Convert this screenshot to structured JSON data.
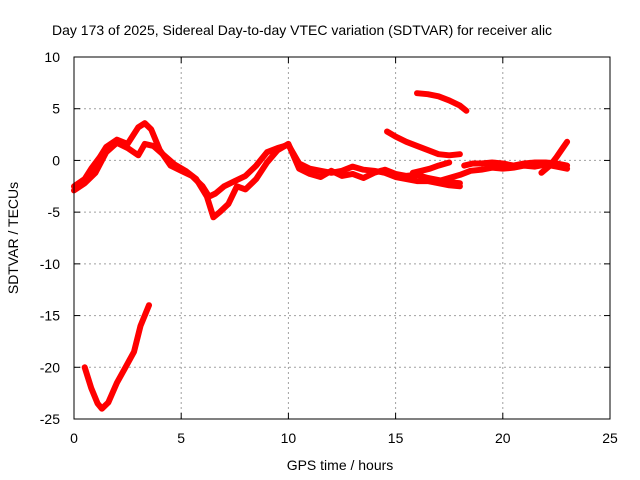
{
  "chart_data": {
    "type": "line",
    "title": "Day 173 of 2025, Sidereal Day-to-day VTEC variation (SDTVAR) for receiver alic",
    "xlabel": "GPS time / hours",
    "ylabel": "SDTVAR / TECUs",
    "xlim": [
      0,
      25
    ],
    "ylim": [
      -25,
      10
    ],
    "x_ticks": [
      0,
      5,
      10,
      15,
      20,
      25
    ],
    "y_ticks": [
      -25,
      -20,
      -15,
      -10,
      -5,
      0,
      5,
      10
    ],
    "grid": true,
    "series_color": "#ff0000",
    "series": [
      {
        "name": "s1",
        "x": [
          0.0,
          0.5,
          0.8,
          1.2,
          1.5,
          2.0,
          2.5,
          3.0,
          3.3,
          3.6,
          4.0,
          4.5,
          5.0,
          5.5,
          6.0,
          6.3,
          6.6,
          7.0,
          7.5,
          8.0,
          8.5,
          9.0,
          9.5,
          10.0,
          10.5,
          11.0,
          11.5,
          12.0,
          12.5,
          13.0,
          13.5,
          14.0,
          14.5,
          15.0,
          15.5,
          16.0,
          16.5,
          17.0,
          17.5,
          18.0
        ],
        "y": [
          -2.5,
          -1.8,
          -0.8,
          0.3,
          1.3,
          2.0,
          1.6,
          3.2,
          3.6,
          3.0,
          1.0,
          -0.5,
          -1.0,
          -1.5,
          -2.5,
          -3.5,
          -3.2,
          -2.5,
          -2.0,
          -1.5,
          -0.5,
          0.8,
          1.2,
          1.5,
          -0.3,
          -0.8,
          -1.0,
          -1.2,
          -1.0,
          -0.6,
          -0.9,
          -1.0,
          -1.2,
          -1.6,
          -1.8,
          -2.0,
          -2.0,
          -2.2,
          -2.4,
          -2.5
        ]
      },
      {
        "name": "s2",
        "x": [
          0.0,
          0.5,
          1.0,
          1.5,
          2.0,
          2.5,
          3.0,
          3.3,
          3.7,
          4.2,
          4.7,
          5.2,
          5.7,
          6.2,
          6.5,
          6.8,
          7.2,
          7.6,
          8.0,
          8.5,
          9.0,
          9.5,
          10.0,
          10.5,
          11.0,
          11.5,
          12.0,
          12.5,
          13.0,
          13.5,
          14.0,
          14.5,
          15.0,
          15.5,
          16.0,
          16.5,
          17.0,
          17.5,
          18.0
        ],
        "y": [
          -2.9,
          -2.2,
          -1.2,
          0.8,
          1.7,
          1.2,
          0.5,
          1.6,
          1.4,
          0.5,
          -0.4,
          -1.0,
          -1.8,
          -3.5,
          -5.5,
          -5.0,
          -4.2,
          -2.5,
          -2.8,
          -1.8,
          -0.2,
          1.0,
          1.6,
          -0.8,
          -1.3,
          -1.6,
          -1.0,
          -1.5,
          -1.3,
          -1.7,
          -1.2,
          -0.9,
          -1.3,
          -1.5,
          -1.4,
          -1.7,
          -1.9,
          -2.1,
          -2.2
        ]
      },
      {
        "name": "s3",
        "x": [
          0.5,
          0.8,
          1.1,
          1.3,
          1.6,
          2.0,
          2.4,
          2.8,
          3.1,
          3.5
        ],
        "y": [
          -20.0,
          -22.0,
          -23.5,
          -24.0,
          -23.4,
          -21.5,
          -20.0,
          -18.5,
          -16.0,
          -14.0
        ]
      },
      {
        "name": "s4",
        "x": [
          14.6,
          15.0,
          15.5,
          16.0,
          16.5,
          17.0,
          17.5,
          18.0
        ],
        "y": [
          2.8,
          2.3,
          1.8,
          1.4,
          1.0,
          0.6,
          0.5,
          0.6
        ]
      },
      {
        "name": "s5",
        "x": [
          16.0,
          16.5,
          17.0,
          17.5,
          18.0,
          18.3
        ],
        "y": [
          6.5,
          6.4,
          6.2,
          5.8,
          5.3,
          4.8
        ]
      },
      {
        "name": "s6",
        "x": [
          15.8,
          16.2,
          16.6,
          17.0,
          17.5
        ],
        "y": [
          -1.2,
          -1.0,
          -0.8,
          -0.5,
          -0.2
        ]
      },
      {
        "name": "s7",
        "x": [
          17.0,
          17.5,
          18.0,
          18.5,
          19.0,
          19.5,
          20.0,
          20.5,
          21.0,
          21.5,
          22.0,
          22.5,
          23.0
        ],
        "y": [
          -2.0,
          -1.7,
          -1.4,
          -1.0,
          -0.9,
          -0.7,
          -0.8,
          -0.7,
          -0.5,
          -0.6,
          -0.4,
          -0.6,
          -0.8
        ]
      },
      {
        "name": "s8",
        "x": [
          18.2,
          18.6,
          19.0,
          19.5,
          20.0,
          20.5,
          21.0,
          21.5,
          22.0,
          22.5,
          23.0
        ],
        "y": [
          -0.5,
          -0.3,
          -0.3,
          -0.2,
          -0.3,
          -0.5,
          -0.3,
          -0.2,
          -0.2,
          -0.3,
          -0.5
        ]
      },
      {
        "name": "s9",
        "x": [
          21.8,
          22.2,
          22.5,
          22.8,
          23.0
        ],
        "y": [
          -1.2,
          -0.5,
          0.3,
          1.2,
          1.8
        ]
      }
    ]
  }
}
